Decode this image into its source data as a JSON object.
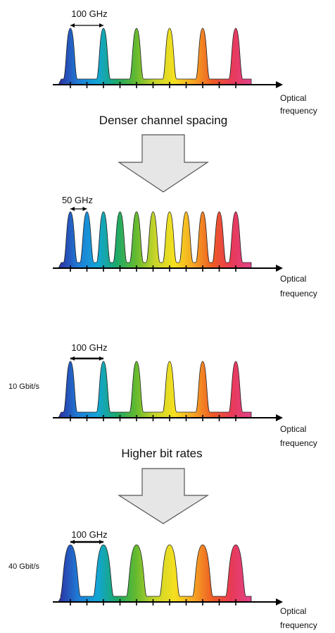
{
  "colors": {
    "spectrum": [
      "#2b2fa0",
      "#1f7bd6",
      "#12a5d8",
      "#1ba86a",
      "#63b92f",
      "#c7d42a",
      "#f5e020",
      "#f5a623",
      "#ee5a24",
      "#e83a58",
      "#e0428c"
    ],
    "arrow_fill": "#e6e6e6",
    "arrow_stroke": "#555555",
    "axis": "#000000"
  },
  "panels": [
    {
      "id": "spacing-100ghz",
      "spacing_label": "100 GHz",
      "axis_label_line1": "Optical",
      "axis_label_line2": "frequency",
      "side_label": "",
      "channel_count": 6,
      "channel_pitch": 2,
      "thick_bracket": false,
      "wide_peaks": false
    },
    {
      "id": "spacing-50ghz",
      "spacing_label": "50 GHz",
      "axis_label_line1": "Optical",
      "axis_label_line2": "frequency",
      "side_label": "",
      "channel_count": 11,
      "channel_pitch": 1,
      "thick_bracket": false,
      "wide_peaks": false
    },
    {
      "id": "rate-10gbit",
      "spacing_label": "100 GHz",
      "axis_label_line1": "Optical",
      "axis_label_line2": "frequency",
      "side_label": "10 Gbit/s",
      "channel_count": 6,
      "channel_pitch": 2,
      "thick_bracket": true,
      "wide_peaks": false
    },
    {
      "id": "rate-40gbit",
      "spacing_label": "100 GHz",
      "axis_label_line1": "Optical",
      "axis_label_line2": "frequency",
      "side_label": "40 Gbit/s",
      "channel_count": 6,
      "channel_pitch": 2,
      "thick_bracket": true,
      "wide_peaks": true
    }
  ],
  "transitions": [
    {
      "caption": "Denser channel spacing"
    },
    {
      "caption": "Higher bit rates"
    }
  ]
}
